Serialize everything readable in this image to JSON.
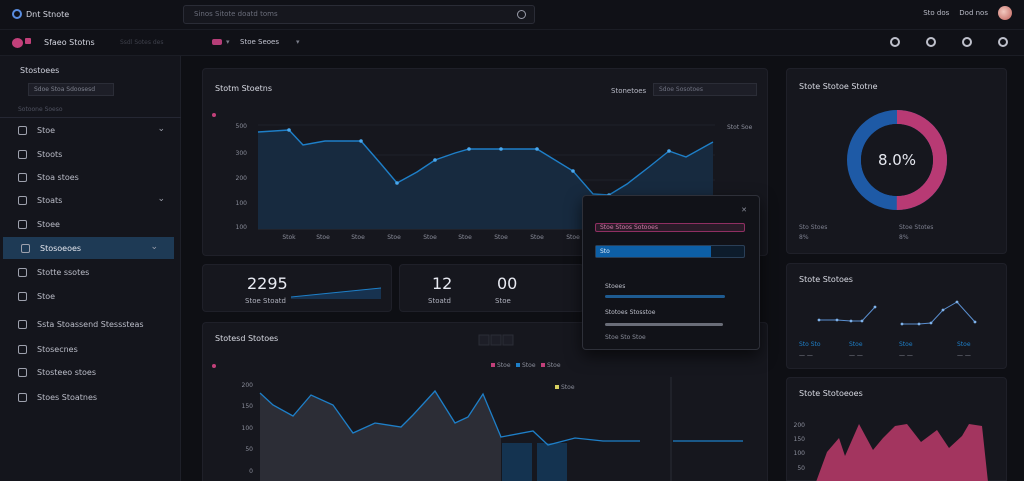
{
  "app": {
    "name": "Dnt Stnote",
    "search_placeholder": "Sinos Sitote doatd toms",
    "top_right": [
      "Sto dos",
      "Dod nos"
    ]
  },
  "subheader": {
    "title": "Sfaeo Stotns",
    "workspace": "Stoe Seoes",
    "dim_text": "Ssdl Sotes  des"
  },
  "sidebar": {
    "heading": "Stostoees",
    "select_value": "Sdoe Stoa Sdoosesd",
    "section": "Sotoone Soeso",
    "items": [
      {
        "label": "Stoe",
        "icon": "grid-icon",
        "caret": true
      },
      {
        "label": "Stoots",
        "icon": "chart-icon",
        "caret": false
      },
      {
        "label": "Stoa stoes",
        "icon": "users-icon",
        "caret": false
      },
      {
        "label": "Stoats",
        "icon": "folder-icon",
        "caret": true
      },
      {
        "label": "Stoee",
        "icon": "doc-icon",
        "caret": false
      },
      {
        "label": "Stosoeoes",
        "icon": "layers-icon",
        "caret": true,
        "active": true
      },
      {
        "label": "Stotte ssotes",
        "icon": "bar-icon",
        "caret": false
      },
      {
        "label": "Stoe",
        "icon": "tag-icon",
        "caret": false
      },
      {
        "label": "Ssta Stoassend Stesssteas",
        "icon": "settings-icon",
        "caret": false
      },
      {
        "label": "Stosecnes",
        "icon": "book-icon",
        "caret": false
      },
      {
        "label": "Stosteeo stoes",
        "icon": "inbox-icon",
        "caret": false
      },
      {
        "label": "Stoes Stoatnes",
        "icon": "archive-icon",
        "caret": false
      }
    ]
  },
  "main_chart": {
    "title": "Stotm Stoetns",
    "range_label": "Stonetoes",
    "range_value": "Sdoe Sosotoes",
    "y_ticks": [
      "500",
      "300",
      "200",
      "100",
      "100"
    ],
    "x_ticks": [
      "Stok",
      "Stoe",
      "Stoe",
      "Stoe",
      "Stoe",
      "Stoe",
      "Stoe",
      "Stoe",
      "Stoe"
    ],
    "right_tick": "Stot Soe"
  },
  "kpis": [
    {
      "value": "2295",
      "label": "Stoe Stoatd"
    },
    {
      "value": "12",
      "label": "Stoatd"
    },
    {
      "value": "00",
      "label": "Stoe"
    }
  ],
  "popover": {
    "field1": "Stoe Stoos Sotooes",
    "field2": "Sto",
    "progress": 0.78,
    "label1": "Stoees",
    "label2": "Stotoes Stosstoe",
    "footer": "Stoe Sto Stoe"
  },
  "bottom_chart": {
    "title": "Stotesd Stotoes",
    "legend": [
      "Stoe",
      "Stoe",
      "Stoe"
    ],
    "y_ticks": [
      "200",
      "150",
      "100",
      "50",
      "0"
    ]
  },
  "donut": {
    "title": "Stote Stotoe Stotne",
    "center": "8.0%",
    "share_pink": 0.5,
    "legend": [
      {
        "label": "Sto Stoes",
        "value": "8%"
      },
      {
        "label": "Stoe Stotes",
        "value": "8%"
      }
    ]
  },
  "line_card": {
    "title": "Stote Stotoes",
    "labels": [
      "Sto Sto",
      "Stoe",
      "Stoe",
      "Stoe"
    ]
  },
  "area_card": {
    "title": "Stote Stotoeoes",
    "y_ticks": [
      "200",
      "150",
      "100",
      "50"
    ]
  },
  "colors": {
    "accent_blue": "#1e7fc8",
    "accent_pink": "#c2407a",
    "active_nav": "#1e3a55"
  }
}
